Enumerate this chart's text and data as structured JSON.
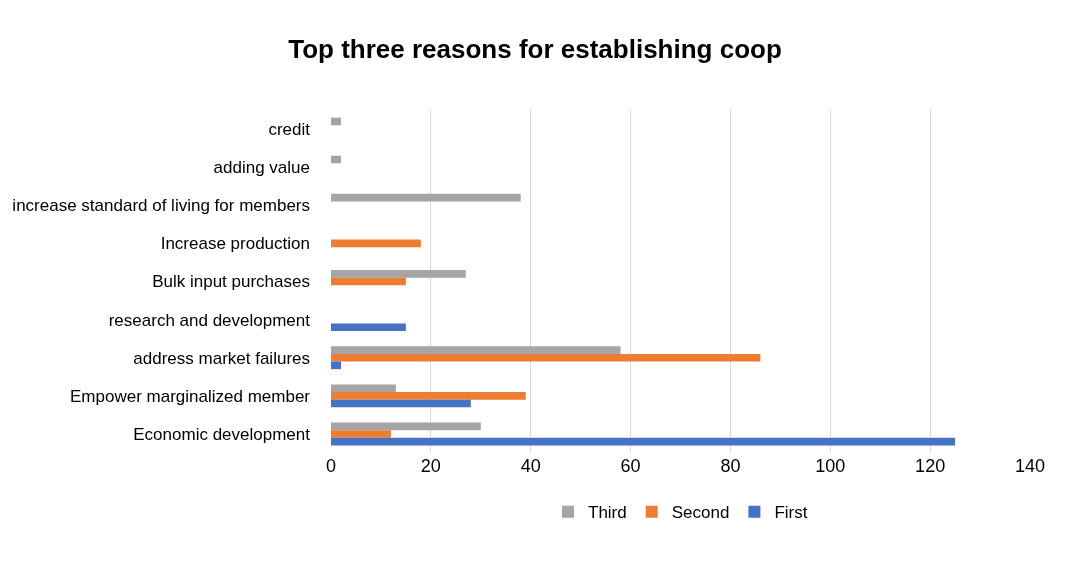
{
  "chart_data": {
    "type": "bar",
    "orientation": "horizontal",
    "title": "Top three reasons for establishing coop",
    "categories": [
      "credit",
      "adding value",
      "increase standard of living for members",
      "Increase production",
      "Bulk input purchases",
      "research and development",
      "address market failures",
      "Empower marginalized member",
      "Economic development"
    ],
    "series": [
      {
        "name": "Third",
        "color": "#a5a5a5",
        "values": [
          2,
          2,
          38,
          null,
          27,
          null,
          58,
          13,
          30
        ]
      },
      {
        "name": "Second",
        "color": "#ed7d31",
        "values": [
          null,
          null,
          null,
          18,
          15,
          null,
          86,
          39,
          12
        ]
      },
      {
        "name": "First",
        "color": "#4472c4",
        "values": [
          null,
          null,
          null,
          null,
          null,
          15,
          2,
          28,
          125
        ]
      }
    ],
    "xlim": [
      0,
      140
    ],
    "xticks": [
      0,
      20,
      40,
      60,
      80,
      100,
      120,
      140
    ],
    "grid": "x",
    "legend": "bottom"
  }
}
